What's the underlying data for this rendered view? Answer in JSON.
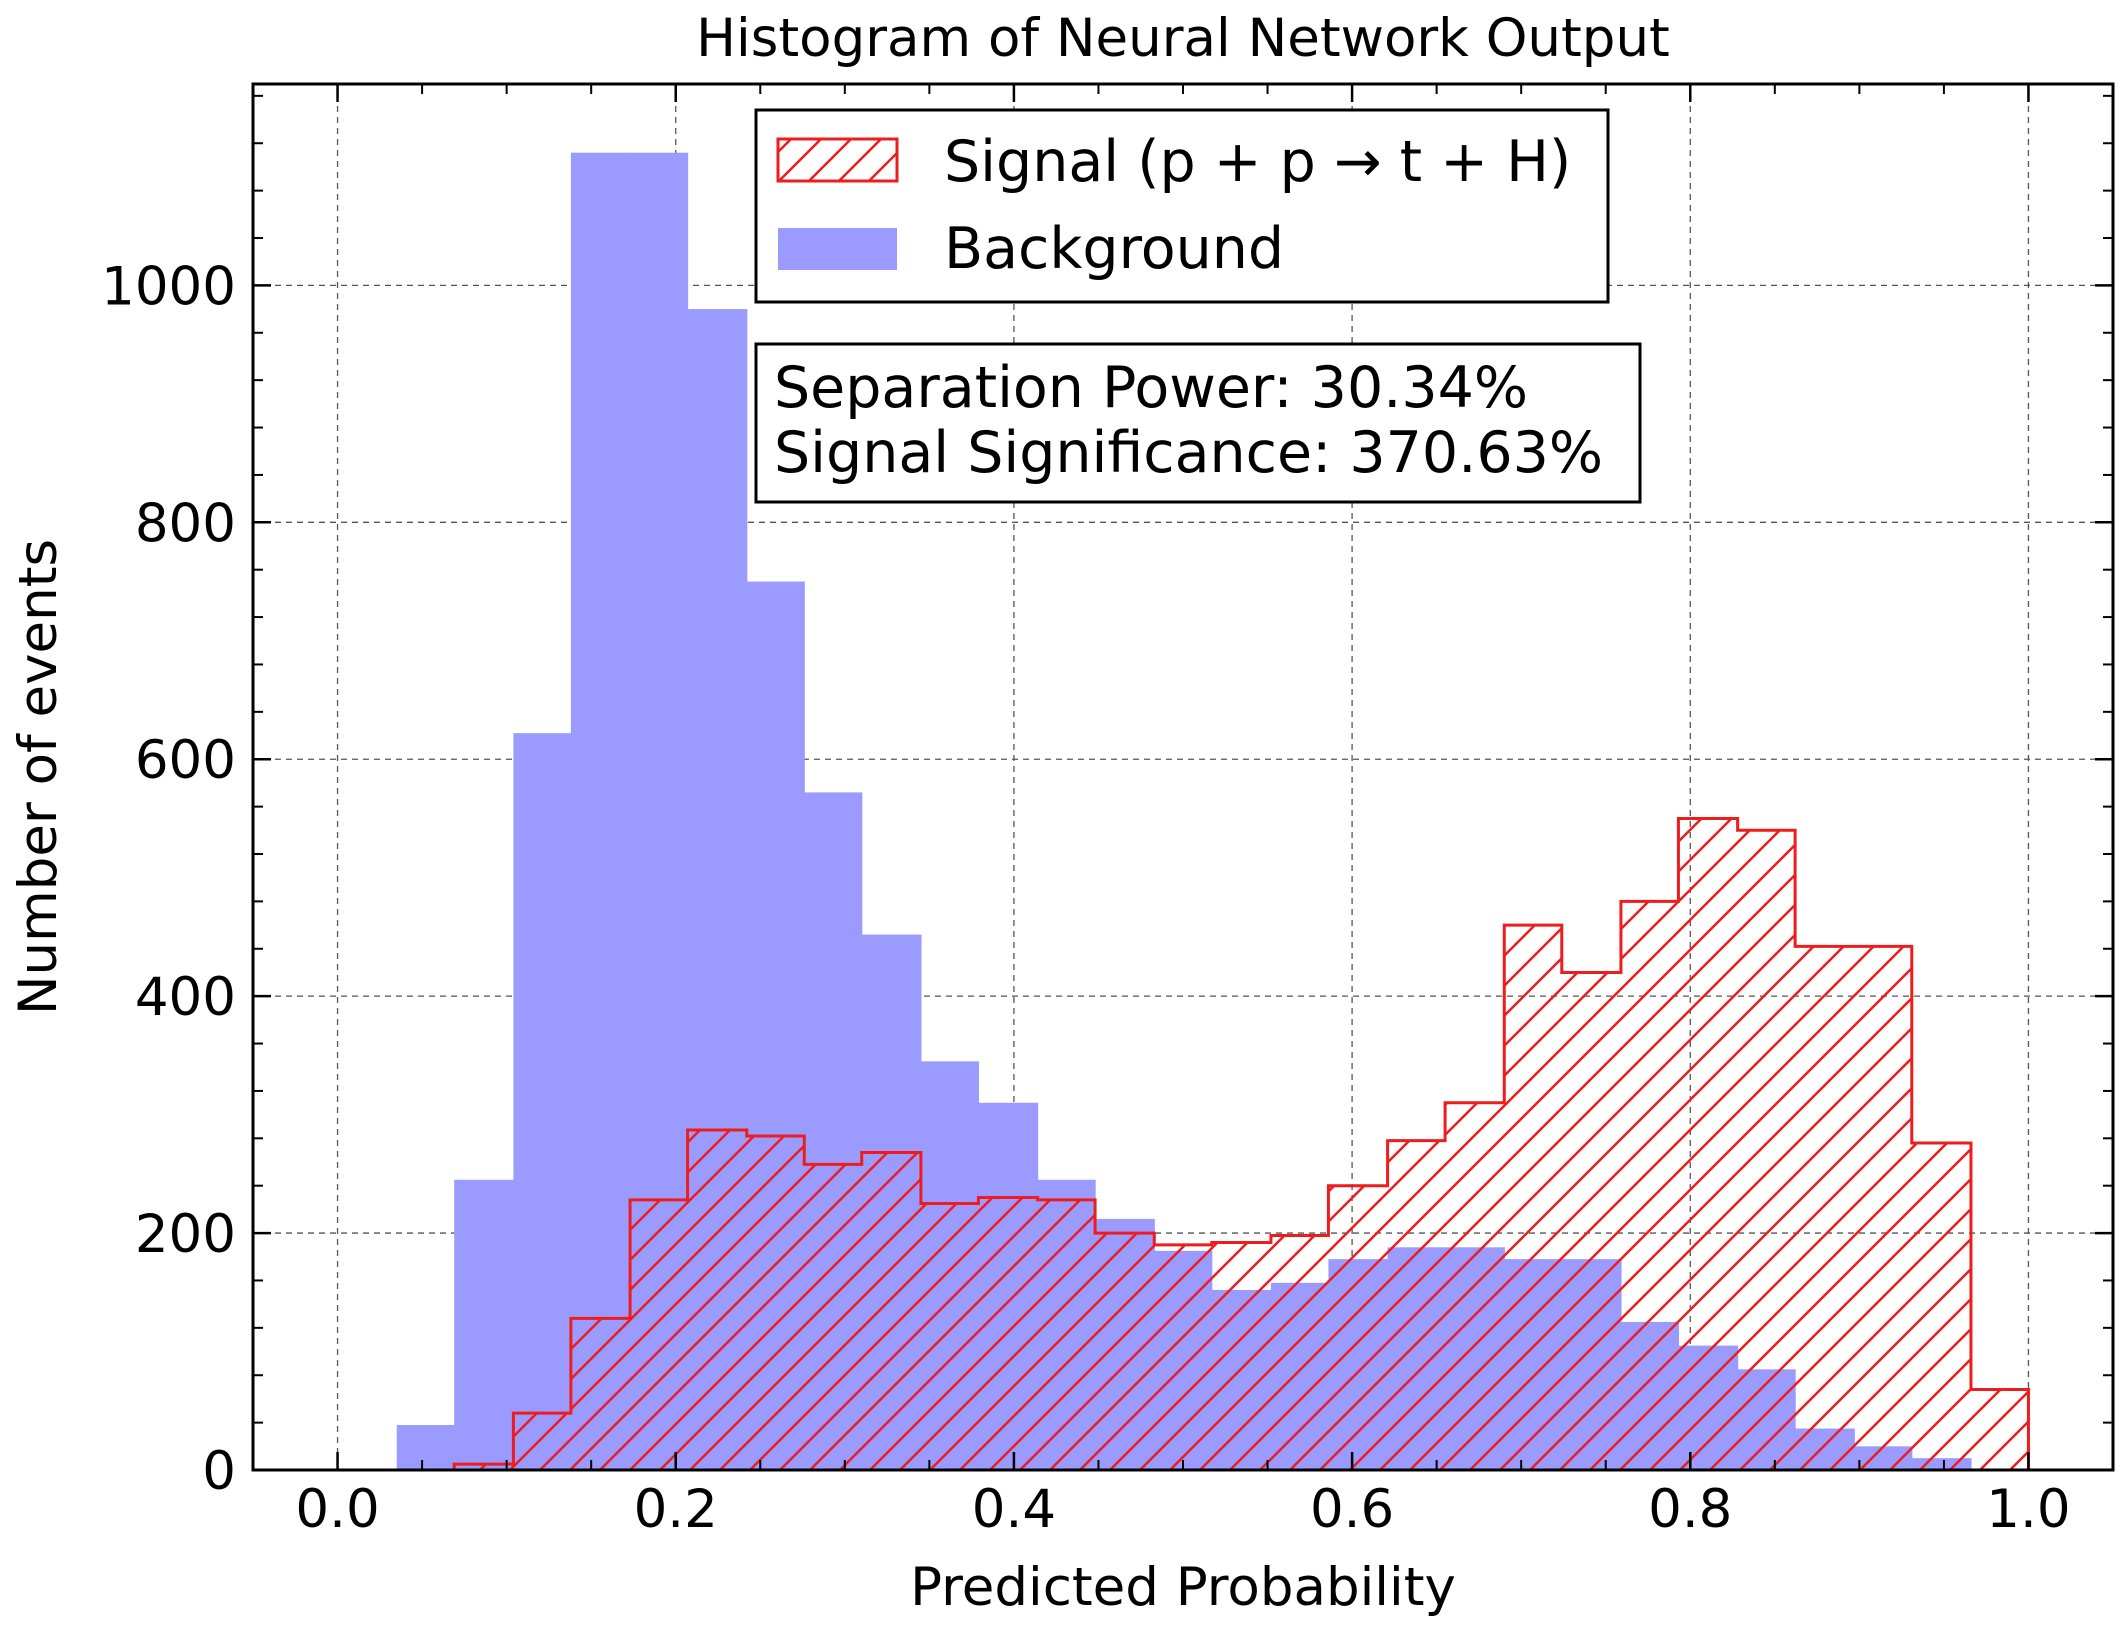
{
  "chart_data": {
    "type": "histogram",
    "title": "Histogram of Neural Network Output",
    "xlabel": "Predicted Probability",
    "ylabel": "Number of events",
    "xlim": [
      -0.05,
      1.05
    ],
    "ylim": [
      0,
      1170
    ],
    "xticks": [
      0.0,
      0.2,
      0.4,
      0.6,
      0.8,
      1.0
    ],
    "xtick_labels": [
      "0.0",
      "0.2",
      "0.4",
      "0.6",
      "0.8",
      "1.0"
    ],
    "yticks": [
      0,
      200,
      400,
      600,
      800,
      1000
    ],
    "ytick_labels": [
      "0",
      "200",
      "400",
      "600",
      "800",
      "1000"
    ],
    "grid": true,
    "legend_position": "top-center",
    "series": [
      {
        "name": "Signal (p + p → t + H)",
        "style": "step-hatched",
        "color": "#ee1c1c",
        "bin_edges": [
          0.069,
          0.104,
          0.138,
          0.173,
          0.207,
          0.242,
          0.276,
          0.31,
          0.345,
          0.379,
          0.414,
          0.448,
          0.483,
          0.517,
          0.552,
          0.586,
          0.621,
          0.655,
          0.69,
          0.724,
          0.759,
          0.793,
          0.828,
          0.862,
          0.897,
          0.931,
          0.966,
          1.0
        ],
        "counts": [
          5,
          48,
          128,
          228,
          287,
          282,
          258,
          268,
          225,
          230,
          228,
          200,
          190,
          192,
          198,
          240,
          278,
          310,
          460,
          420,
          480,
          550,
          540,
          442,
          442,
          276,
          68
        ]
      },
      {
        "name": "Background",
        "style": "filled",
        "color": "#9b9bff",
        "bin_edges": [
          0.035,
          0.069,
          0.104,
          0.138,
          0.173,
          0.207,
          0.242,
          0.276,
          0.31,
          0.345,
          0.379,
          0.414,
          0.448,
          0.483,
          0.517,
          0.552,
          0.586,
          0.621,
          0.655,
          0.69,
          0.724,
          0.759,
          0.793,
          0.828,
          0.862,
          0.897,
          0.931,
          0.966
        ],
        "counts": [
          38,
          245,
          622,
          1112,
          1112,
          980,
          750,
          572,
          452,
          345,
          310,
          245,
          212,
          185,
          152,
          158,
          178,
          188,
          188,
          178,
          178,
          125,
          105,
          85,
          35,
          20,
          10
        ]
      }
    ],
    "annotation_lines": [
      "Separation Power: 30.34%",
      "Signal Significance: 370.63%"
    ]
  }
}
